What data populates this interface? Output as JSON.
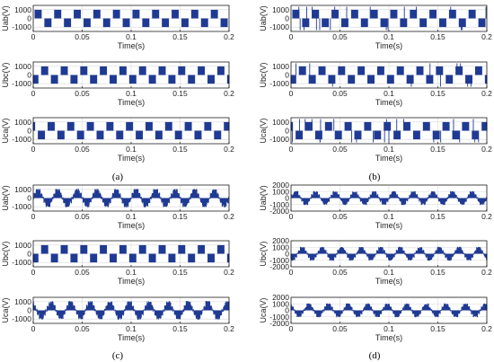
{
  "figure": {
    "captions": [
      "(a)",
      "(b)",
      "(c)",
      "(d)"
    ],
    "colors": {
      "signal": "#1f3a93",
      "grid": "#d9d9d9",
      "axis": "#000000"
    }
  },
  "chart_data": [
    {
      "type": "line",
      "panel": "a",
      "ylabel": "Uab(V)",
      "xlabel": "Time(s)",
      "xlim": [
        0,
        0.2
      ],
      "ylim": [
        -1500,
        1500
      ],
      "xticks": [
        "0",
        "0.05",
        "0.1",
        "0.15",
        "0.2"
      ],
      "yticks": [
        "-1000",
        "0",
        "1000"
      ],
      "grid": true,
      "waveform": "square",
      "amplitude": 1000,
      "frequency_hz": 50,
      "periods": 10,
      "phase_deg": 0
    },
    {
      "type": "line",
      "panel": "a",
      "ylabel": "Ubc(V)",
      "xlabel": "Time(s)",
      "xlim": [
        0,
        0.2
      ],
      "ylim": [
        -1500,
        1500
      ],
      "xticks": [
        "0",
        "0.05",
        "0.1",
        "0.15",
        "0.2"
      ],
      "yticks": [
        "-1000",
        "0",
        "1000"
      ],
      "grid": true,
      "waveform": "square",
      "amplitude": 1000,
      "frequency_hz": 50,
      "periods": 10,
      "phase_deg": -120
    },
    {
      "type": "line",
      "panel": "a",
      "ylabel": "Uca(V)",
      "xlabel": "Time(s)",
      "xlim": [
        0,
        0.2
      ],
      "ylim": [
        -1500,
        1500
      ],
      "xticks": [
        "0",
        "0.05",
        "0.1",
        "0.15",
        "0.2"
      ],
      "yticks": [
        "-1000",
        "0",
        "1000"
      ],
      "grid": true,
      "waveform": "square",
      "amplitude": 1000,
      "frequency_hz": 50,
      "periods": 10,
      "phase_deg": 120
    },
    {
      "type": "line",
      "panel": "b",
      "ylabel": "Uab(V)",
      "xlabel": "Time(s)",
      "xlim": [
        0,
        0.2
      ],
      "ylim": [
        -1500,
        1500
      ],
      "xticks": [
        "0",
        "0.05",
        "0.1",
        "0.15",
        "0.2"
      ],
      "yticks": [
        "-1000",
        "0",
        "1000"
      ],
      "grid": true,
      "waveform": "square-with-spikes",
      "amplitude": 1000,
      "frequency_hz": 50,
      "periods": 10,
      "phase_deg": 0
    },
    {
      "type": "line",
      "panel": "b",
      "ylabel": "Ubc(V)",
      "xlabel": "Time(s)",
      "xlim": [
        0,
        0.2
      ],
      "ylim": [
        -1500,
        1500
      ],
      "xticks": [
        "0",
        "0.05",
        "0.1",
        "0.15",
        "0.2"
      ],
      "yticks": [
        "-1000",
        "0",
        "1000"
      ],
      "grid": true,
      "waveform": "square-with-spikes",
      "amplitude": 1000,
      "frequency_hz": 50,
      "periods": 10,
      "phase_deg": -120
    },
    {
      "type": "line",
      "panel": "b",
      "ylabel": "Uca(V)",
      "xlabel": "Time(s)",
      "xlim": [
        0,
        0.2
      ],
      "ylim": [
        -1500,
        1500
      ],
      "xticks": [
        "0",
        "0.05",
        "0.1",
        "0.15",
        "0.2"
      ],
      "yticks": [
        "-1000",
        "0",
        "1000"
      ],
      "grid": true,
      "waveform": "square-with-spikes",
      "amplitude": 1000,
      "frequency_hz": 50,
      "periods": 10,
      "phase_deg": 120
    },
    {
      "type": "line",
      "panel": "c",
      "ylabel": "Uab(V)",
      "xlabel": "Time(s)",
      "xlim": [
        0,
        0.2
      ],
      "ylim": [
        -1500,
        1500
      ],
      "xticks": [
        "0",
        "0.05",
        "0.1",
        "0.15",
        "0.2"
      ],
      "yticks": [
        "-1000",
        "0",
        "1000"
      ],
      "grid": true,
      "waveform": "distorted",
      "amplitude": 1000,
      "frequency_hz": 50,
      "periods": 10,
      "phase_deg": 0
    },
    {
      "type": "line",
      "panel": "c",
      "ylabel": "Ubc(V)",
      "xlabel": "Time(s)",
      "xlim": [
        0,
        0.2
      ],
      "ylim": [
        -1500,
        1500
      ],
      "xticks": [
        "0",
        "0.05",
        "0.1",
        "0.15",
        "0.2"
      ],
      "yticks": [
        "-1000",
        "0",
        "1000"
      ],
      "grid": true,
      "waveform": "square",
      "amplitude": 1000,
      "frequency_hz": 50,
      "periods": 10,
      "phase_deg": -120
    },
    {
      "type": "line",
      "panel": "c",
      "ylabel": "Uca(V)",
      "xlabel": "Time(s)",
      "xlim": [
        0,
        0.2
      ],
      "ylim": [
        -1500,
        1500
      ],
      "xticks": [
        "0",
        "0.05",
        "0.1",
        "0.15",
        "0.2"
      ],
      "yticks": [
        "-1000",
        "0",
        "1000"
      ],
      "grid": true,
      "waveform": "distorted",
      "amplitude": 1000,
      "frequency_hz": 50,
      "periods": 10,
      "phase_deg": 120
    },
    {
      "type": "line",
      "panel": "d",
      "ylabel": "Uab(V)",
      "xlabel": "Time(s)",
      "xlim": [
        0,
        0.2
      ],
      "ylim": [
        -2000,
        2000
      ],
      "xticks": [
        "0",
        "0.05",
        "0.1",
        "0.15",
        "0.2"
      ],
      "yticks": [
        "-2000",
        "-1000",
        "0",
        "1000",
        "2000"
      ],
      "grid": true,
      "waveform": "distorted",
      "amplitude": 1000,
      "frequency_hz": 50,
      "periods": 10,
      "phase_deg": 0
    },
    {
      "type": "line",
      "panel": "d",
      "ylabel": "Ubc(V)",
      "xlabel": "Time(s)",
      "xlim": [
        0,
        0.2
      ],
      "ylim": [
        -2000,
        2000
      ],
      "xticks": [
        "0",
        "0.05",
        "0.1",
        "0.15",
        "0.2"
      ],
      "yticks": [
        "-2000",
        "-1000",
        "0",
        "1000",
        "2000"
      ],
      "grid": true,
      "waveform": "distorted",
      "amplitude": 1000,
      "frequency_hz": 50,
      "periods": 10,
      "phase_deg": -120
    },
    {
      "type": "line",
      "panel": "d",
      "ylabel": "Uca(V)",
      "xlabel": "Time(s)",
      "xlim": [
        0,
        0.2
      ],
      "ylim": [
        -2000,
        2000
      ],
      "xticks": [
        "0",
        "0.05",
        "0.1",
        "0.15",
        "0.2"
      ],
      "yticks": [
        "-2000",
        "-1000",
        "0",
        "1000",
        "2000"
      ],
      "grid": true,
      "waveform": "distorted",
      "amplitude": 1000,
      "frequency_hz": 50,
      "periods": 10,
      "phase_deg": 120
    }
  ]
}
